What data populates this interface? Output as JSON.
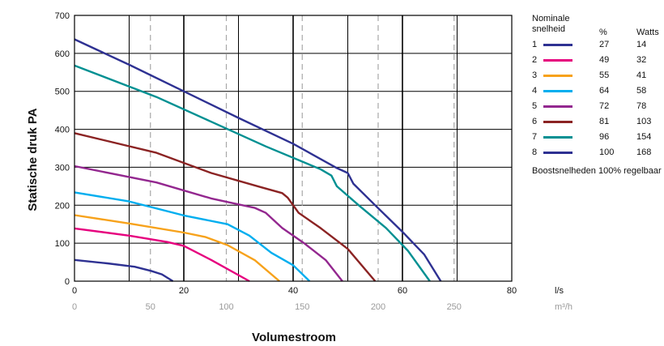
{
  "chart_data": {
    "type": "line",
    "xlabel": "Volumestroom",
    "ylabel": "Statische druk PA",
    "x_unit": "l/s",
    "x2_unit": "m³/h",
    "xlim": [
      0,
      80
    ],
    "ylim": [
      0,
      700
    ],
    "x_ticks": [
      "0",
      "20",
      "40",
      "60",
      "80"
    ],
    "x2_ticks": [
      "0",
      "50",
      "100",
      "150",
      "200",
      "250"
    ],
    "y_ticks": [
      "0",
      "100",
      "200",
      "300",
      "400",
      "500",
      "600",
      "700"
    ],
    "grid": true,
    "legend_position": "right",
    "series": [
      {
        "name": "1",
        "color": "#2e3192",
        "pct": "27",
        "watts": "14",
        "points": [
          [
            0,
            56
          ],
          [
            6,
            47
          ],
          [
            11,
            38
          ],
          [
            14,
            27
          ],
          [
            16,
            18
          ],
          [
            18,
            0
          ]
        ]
      },
      {
        "name": "2",
        "color": "#e6007e",
        "pct": "49",
        "watts": "32",
        "points": [
          [
            0,
            139
          ],
          [
            10,
            120
          ],
          [
            17,
            103
          ],
          [
            20,
            93
          ],
          [
            25,
            56
          ],
          [
            32,
            0
          ]
        ]
      },
      {
        "name": "3",
        "color": "#f7a21b",
        "pct": "55",
        "watts": "41",
        "points": [
          [
            0,
            174
          ],
          [
            10,
            152
          ],
          [
            20,
            128
          ],
          [
            24,
            116
          ],
          [
            28,
            95
          ],
          [
            33,
            55
          ],
          [
            37.5,
            0
          ]
        ]
      },
      {
        "name": "4",
        "color": "#00aeef",
        "pct": "64",
        "watts": "58",
        "points": [
          [
            0,
            234
          ],
          [
            10,
            210
          ],
          [
            20,
            173
          ],
          [
            28,
            150
          ],
          [
            32,
            120
          ],
          [
            36,
            75
          ],
          [
            40,
            42
          ],
          [
            43,
            0
          ]
        ]
      },
      {
        "name": "5",
        "color": "#93278f",
        "pct": "72",
        "watts": "78",
        "points": [
          [
            0,
            303
          ],
          [
            15,
            260
          ],
          [
            25,
            218
          ],
          [
            33,
            193
          ],
          [
            35,
            180
          ],
          [
            38,
            140
          ],
          [
            42,
            100
          ],
          [
            46,
            55
          ],
          [
            49,
            0
          ]
        ]
      },
      {
        "name": "6",
        "color": "#8b2323",
        "pct": "81",
        "watts": "103",
        "points": [
          [
            0,
            390
          ],
          [
            15,
            338
          ],
          [
            25,
            285
          ],
          [
            34,
            248
          ],
          [
            38,
            232
          ],
          [
            39,
            220
          ],
          [
            41,
            180
          ],
          [
            45,
            140
          ],
          [
            50,
            85
          ],
          [
            55,
            0
          ]
        ]
      },
      {
        "name": "7",
        "color": "#009092",
        "pct": "96",
        "watts": "154",
        "points": [
          [
            0,
            568
          ],
          [
            15,
            485
          ],
          [
            25,
            420
          ],
          [
            35,
            355
          ],
          [
            45,
            295
          ],
          [
            47,
            278
          ],
          [
            48,
            250
          ],
          [
            52,
            200
          ],
          [
            57,
            140
          ],
          [
            61,
            80
          ],
          [
            65,
            0
          ]
        ]
      },
      {
        "name": "8",
        "color": "#2e3192",
        "pct": "100",
        "watts": "168",
        "points": [
          [
            0,
            637
          ],
          [
            10,
            570
          ],
          [
            20,
            500
          ],
          [
            30,
            430
          ],
          [
            40,
            362
          ],
          [
            48,
            298
          ],
          [
            50,
            285
          ],
          [
            51,
            257
          ],
          [
            55,
            200
          ],
          [
            60,
            130
          ],
          [
            64,
            70
          ],
          [
            67,
            0
          ]
        ]
      }
    ]
  },
  "legend": {
    "header_name": "Nominale snelheid",
    "header_pct": "%",
    "header_watts": "Watts",
    "note": "Boostsnelheden 100% regelbaar"
  }
}
